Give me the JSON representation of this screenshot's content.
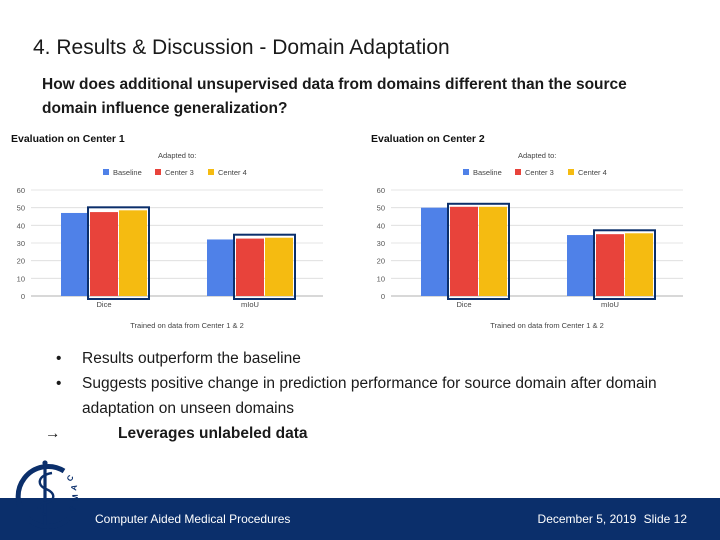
{
  "slide": {
    "title": "4. Results & Discussion - Domain Adaptation",
    "question": "How does additional unsupervised data from domains different than the source domain influence generalization?"
  },
  "bullets": [
    {
      "mark": "•",
      "text": "Results outperform the baseline"
    },
    {
      "mark": "•",
      "text": "Suggests positive change in prediction performance for source domain after domain adaptation on unseen domains"
    }
  ],
  "arrow_line": {
    "mark": "→",
    "text": "Leverages unlabeled data"
  },
  "footer": {
    "institution": "Computer Aided Medical Procedures",
    "date": "December 5, 2019",
    "slide_label": "Slide 12"
  },
  "logo": {
    "text": "CAMP"
  },
  "colors": {
    "baseline": "#4f81e8",
    "center3": "#e8433b",
    "center4": "#f5bb11",
    "highlight": "#0b2f6b",
    "footer": "#0b2f6b"
  },
  "chart_data": [
    {
      "type": "bar",
      "title": "Evaluation on Center 1",
      "legend_title": "Adapted to:",
      "legend_position": "top-right",
      "categories": [
        "Dice",
        "mIoU"
      ],
      "xlabel": "Trained on data from Center 1 & 2",
      "ylabel": "",
      "ylim": [
        0,
        60
      ],
      "yticks": [
        0,
        10,
        20,
        30,
        40,
        50,
        60
      ],
      "grid": true,
      "series": [
        {
          "name": "Baseline",
          "color": "#4f81e8",
          "values": [
            47,
            32
          ]
        },
        {
          "name": "Center 3",
          "color": "#e8433b",
          "values": [
            47.5,
            32.5
          ]
        },
        {
          "name": "Center 4",
          "color": "#f5bb11",
          "values": [
            48.5,
            33
          ]
        }
      ]
    },
    {
      "type": "bar",
      "title": "Evaluation on Center 2",
      "legend_title": "Adapted to:",
      "legend_position": "top-right",
      "categories": [
        "Dice",
        "mIoU"
      ],
      "xlabel": "Trained on data from Center 1 & 2",
      "ylabel": "",
      "ylim": [
        0,
        60
      ],
      "yticks": [
        0,
        10,
        20,
        30,
        40,
        50,
        60
      ],
      "grid": true,
      "series": [
        {
          "name": "Baseline",
          "color": "#4f81e8",
          "values": [
            50,
            34.5
          ]
        },
        {
          "name": "Center 3",
          "color": "#e8433b",
          "values": [
            50.5,
            35
          ]
        },
        {
          "name": "Center 4",
          "color": "#f5bb11",
          "values": [
            50.5,
            35.5
          ]
        }
      ]
    }
  ]
}
